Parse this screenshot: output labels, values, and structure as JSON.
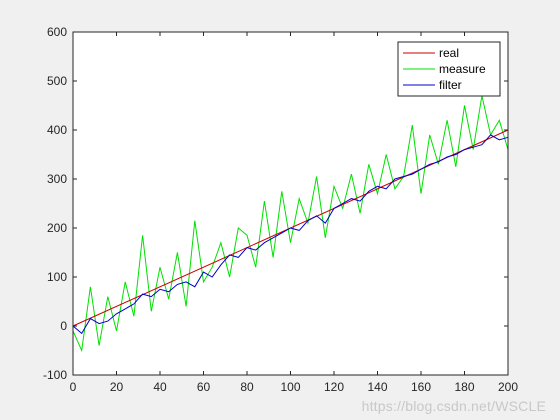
{
  "chart_data": {
    "type": "line",
    "title": "",
    "xlabel": "",
    "ylabel": "",
    "xlim": [
      0,
      200
    ],
    "ylim": [
      -100,
      600
    ],
    "x_ticks": [
      0,
      20,
      40,
      60,
      80,
      100,
      120,
      140,
      160,
      180,
      200
    ],
    "y_ticks": [
      -100,
      0,
      100,
      200,
      300,
      400,
      500,
      600
    ],
    "grid": false,
    "legend_position": "top-right",
    "series": [
      {
        "name": "real",
        "color": "#cc0000",
        "x": [
          0,
          200
        ],
        "y": [
          0,
          400
        ]
      },
      {
        "name": "measure",
        "color": "#00e000",
        "x": [
          0,
          4,
          8,
          12,
          16,
          20,
          24,
          28,
          32,
          36,
          40,
          44,
          48,
          52,
          56,
          60,
          64,
          68,
          72,
          76,
          80,
          84,
          88,
          92,
          96,
          100,
          104,
          108,
          112,
          116,
          120,
          124,
          128,
          132,
          136,
          140,
          144,
          148,
          152,
          156,
          160,
          164,
          168,
          172,
          176,
          180,
          184,
          188,
          192,
          196,
          200
        ],
        "y": [
          -10,
          -50,
          80,
          -40,
          60,
          -10,
          90,
          20,
          185,
          30,
          120,
          55,
          150,
          40,
          215,
          90,
          120,
          170,
          100,
          200,
          185,
          120,
          255,
          140,
          275,
          170,
          260,
          210,
          305,
          180,
          285,
          240,
          310,
          230,
          330,
          270,
          350,
          280,
          305,
          410,
          270,
          390,
          330,
          420,
          325,
          450,
          360,
          470,
          390,
          420,
          360
        ]
      },
      {
        "name": "filter",
        "color": "#0000cc",
        "x": [
          0,
          4,
          8,
          12,
          16,
          20,
          24,
          28,
          32,
          36,
          40,
          44,
          48,
          52,
          56,
          60,
          64,
          68,
          72,
          76,
          80,
          84,
          88,
          92,
          96,
          100,
          104,
          108,
          112,
          116,
          120,
          124,
          128,
          132,
          136,
          140,
          144,
          148,
          152,
          156,
          160,
          164,
          168,
          172,
          176,
          180,
          184,
          188,
          192,
          196,
          200
        ],
        "y": [
          0,
          -15,
          15,
          5,
          10,
          25,
          35,
          45,
          65,
          60,
          75,
          70,
          85,
          90,
          80,
          110,
          100,
          125,
          145,
          140,
          160,
          155,
          170,
          180,
          190,
          200,
          195,
          215,
          225,
          210,
          240,
          250,
          260,
          255,
          275,
          285,
          280,
          300,
          305,
          310,
          320,
          330,
          335,
          345,
          350,
          360,
          365,
          370,
          390,
          380,
          385
        ]
      }
    ]
  },
  "watermark": "https://blog.csdn.net/WSCLE"
}
